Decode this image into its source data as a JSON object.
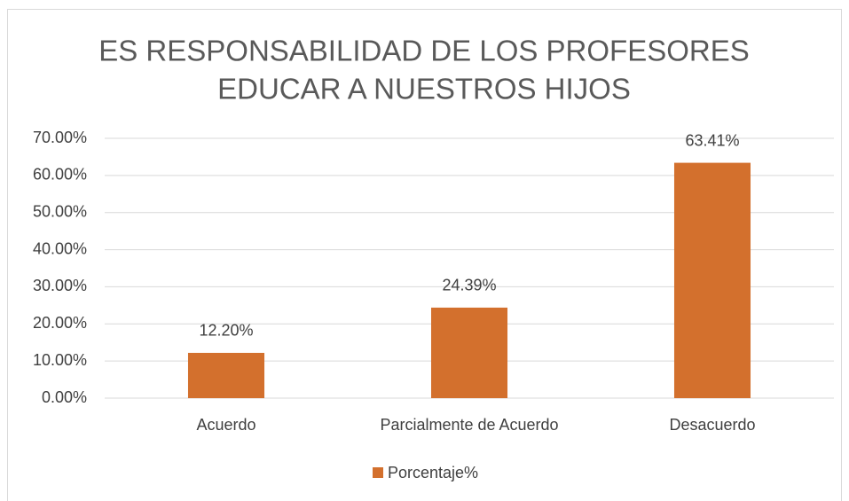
{
  "chart_data": {
    "type": "bar",
    "title": [
      "ES RESPONSABILIDAD DE LOS PROFESORES",
      "EDUCAR A NUESTROS HIJOS"
    ],
    "categories": [
      "Acuerdo",
      "Parcialmente de Acuerdo",
      "Desacuerdo"
    ],
    "series": [
      {
        "name": "Porcentaje%",
        "color": "#d3702d",
        "values": [
          12.2,
          24.39,
          63.41
        ],
        "value_labels": [
          "12.20%",
          "24.39%",
          "63.41%"
        ]
      }
    ],
    "ylim": [
      0,
      70
    ],
    "yticks": [
      {
        "value": 0,
        "label": "0.00%"
      },
      {
        "value": 10,
        "label": "10.00%"
      },
      {
        "value": 20,
        "label": "20.00%"
      },
      {
        "value": 30,
        "label": "30.00%"
      },
      {
        "value": 40,
        "label": "40.00%"
      },
      {
        "value": 50,
        "label": "50.00%"
      },
      {
        "value": 60,
        "label": "60.00%"
      },
      {
        "value": 70,
        "label": "70.00%"
      }
    ],
    "grid": true,
    "legend": "bottom"
  }
}
